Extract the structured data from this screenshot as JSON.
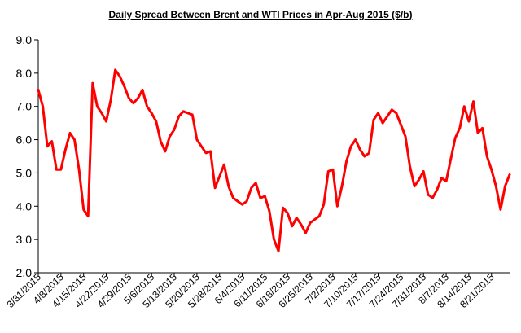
{
  "chart_data": {
    "type": "line",
    "title": "Daily  Spread Between Brent and WTI Prices in  Apr-Aug  2015 ($/b)",
    "xlabel": "",
    "ylabel": "",
    "ylim": [
      2.0,
      9.0
    ],
    "yticks": [
      "9.0",
      "8.0",
      "7.0",
      "6.0",
      "5.0",
      "4.0",
      "3.0",
      "2.0"
    ],
    "grid": false,
    "legend": "none",
    "x_tick_labels": [
      "3/31/2015",
      "4/8/2015",
      "4/15/2015",
      "4/22/2015",
      "4/29/2015",
      "5/6/2015",
      "5/13/2015",
      "5/20/2015",
      "5/28/2015",
      "6/4/2015",
      "6/11/2015",
      "6/18/2015",
      "6/25/2015",
      "7/2/2015",
      "7/10/2015",
      "7/17/2015",
      "7/24/2015",
      "7/31/2015",
      "8/7/2015",
      "8/14/2015",
      "8/21/2015"
    ],
    "series": [
      {
        "color": "#ff0000",
        "values": [
          7.5,
          7.0,
          5.8,
          5.95,
          5.1,
          5.1,
          5.7,
          6.2,
          6.0,
          5.1,
          3.9,
          3.7,
          7.7,
          7.0,
          6.8,
          6.55,
          7.2,
          8.1,
          7.9,
          7.6,
          7.25,
          7.1,
          7.25,
          7.5,
          7.0,
          6.8,
          6.55,
          5.95,
          5.65,
          6.1,
          6.3,
          6.7,
          6.85,
          6.8,
          6.75,
          6.0,
          5.8,
          5.6,
          5.65,
          4.55,
          4.9,
          5.25,
          4.6,
          4.25,
          4.15,
          4.05,
          4.15,
          4.55,
          4.7,
          4.25,
          4.3,
          3.85,
          3.0,
          2.65,
          3.95,
          3.8,
          3.4,
          3.65,
          3.45,
          3.2,
          3.5,
          3.6,
          3.7,
          4.05,
          5.05,
          5.1,
          4.0,
          4.6,
          5.35,
          5.8,
          6.0,
          5.7,
          5.5,
          5.6,
          6.6,
          6.8,
          6.5,
          6.7,
          6.9,
          6.8,
          6.45,
          6.1,
          5.2,
          4.6,
          4.8,
          5.05,
          4.35,
          4.25,
          4.5,
          4.85,
          4.75,
          5.4,
          6.05,
          6.35,
          7.0,
          6.55,
          7.15,
          6.2,
          6.35,
          5.5,
          5.1,
          4.6,
          3.9,
          4.6,
          4.95
        ]
      }
    ]
  }
}
